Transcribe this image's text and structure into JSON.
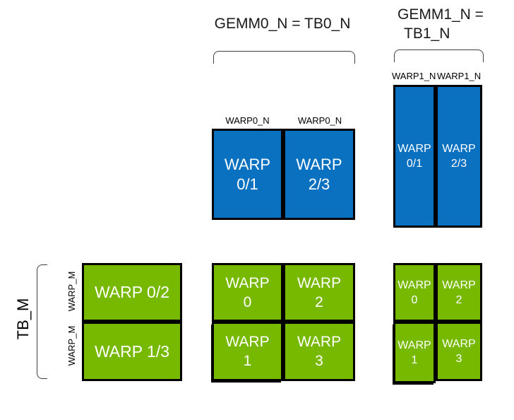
{
  "colors": {
    "warp_blue": "#0A70C0",
    "warp_green": "#76B900",
    "box_border": "#000000",
    "bracket_line": "#3F3F3F",
    "box_text": "#FFFFFF",
    "label_text": "#000000"
  },
  "gemm0": {
    "title": "GEMM0_N = TB0_N",
    "col_labels": [
      "WARP0_N",
      "WARP0_N"
    ],
    "tiles": [
      {
        "line1": "WARP",
        "line2": "0/1"
      },
      {
        "line1": "WARP",
        "line2": "2/3"
      }
    ]
  },
  "gemm1": {
    "title_line1": "GEMM1_N =",
    "title_line2": "TB1_N",
    "col_labels": [
      "WARP1_N",
      "WARP1_N"
    ],
    "tiles": [
      {
        "line1": "WARP",
        "line2": "0/1"
      },
      {
        "line1": "WARP",
        "line2": "2/3"
      }
    ]
  },
  "tb_m": {
    "bracket_label": "TB_M",
    "row_labels": [
      "WARP_M",
      "WARP_M"
    ],
    "tiles": [
      "WARP 0/2",
      "WARP 1/3"
    ]
  },
  "accum_mid": {
    "tiles": [
      {
        "line1": "WARP",
        "line2": "0"
      },
      {
        "line1": "WARP",
        "line2": "2"
      },
      {
        "line1": "WARP",
        "line2": "1"
      },
      {
        "line1": "WARP",
        "line2": "3"
      }
    ]
  },
  "accum_right": {
    "tiles": [
      {
        "line1": "WARP",
        "line2": "0"
      },
      {
        "line1": "WARP",
        "line2": "2"
      },
      {
        "line1": "WARP",
        "line2": "1"
      },
      {
        "line1": "WARP",
        "line2": "3"
      }
    ]
  }
}
